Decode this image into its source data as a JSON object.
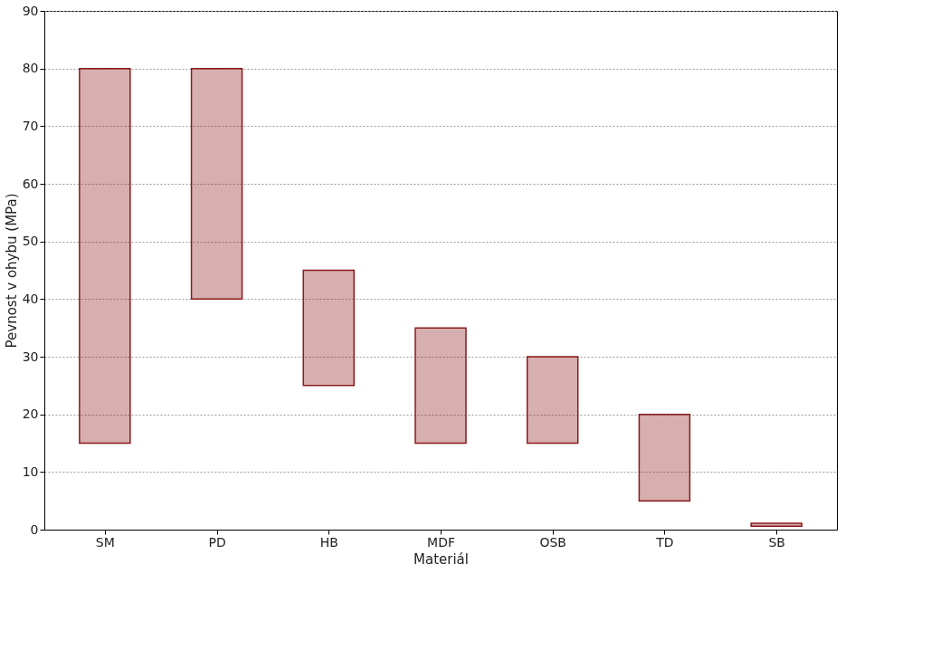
{
  "chart_data": {
    "type": "bar",
    "xlabel": "Materiál",
    "ylabel": "Pevnost v ohybu (MPa)",
    "categories": [
      "SM",
      "PD",
      "HB",
      "MDF",
      "OSB",
      "TD",
      "SB"
    ],
    "base": [
      15,
      40,
      25,
      15,
      15,
      5,
      0.6
    ],
    "values": [
      65,
      40,
      20,
      20,
      15,
      15,
      0.5
    ],
    "color": "#8b1a1a",
    "ylim": [
      0,
      90
    ],
    "yticks": [
      0,
      10,
      20,
      30,
      40,
      50,
      60,
      70,
      80,
      90
    ],
    "grid": "y"
  }
}
